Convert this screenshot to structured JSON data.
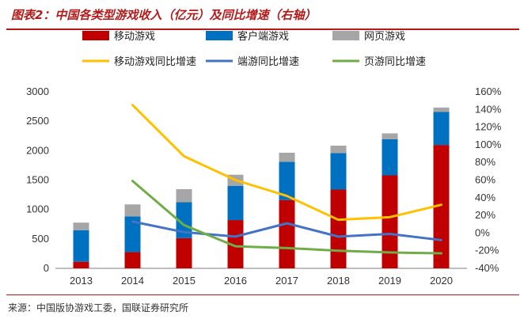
{
  "title": "图表2：中国各类型游戏收入（亿元）及同比增速（右轴）",
  "source": "来源：中国版协游戏工委，国联证券研究所",
  "colors": {
    "accent": "#b31b1b",
    "mobile": "#c00000",
    "client": "#0070c0",
    "web": "#a6a6a6",
    "mobile_growth": "#ffc000",
    "client_growth": "#4472c4",
    "web_growth": "#70ad47"
  },
  "chart_data": {
    "type": "bar",
    "stacked": true,
    "categories": [
      "2013",
      "2014",
      "2015",
      "2016",
      "2017",
      "2018",
      "2019",
      "2020"
    ],
    "ylim_left": [
      0,
      3000
    ],
    "yticks_left": [
      "0",
      "500",
      "1000",
      "1500",
      "2000",
      "2500",
      "3000"
    ],
    "ylim_right": [
      -40,
      160
    ],
    "yticks_right": [
      "-40%",
      "-20%",
      "0%",
      "20%",
      "40%",
      "60%",
      "80%",
      "100%",
      "120%",
      "140%",
      "160%"
    ],
    "legend_position": "top",
    "grid": false,
    "series": [
      {
        "name": "移动游戏",
        "kind": "bar",
        "axis": "left",
        "color": "#c00000",
        "values": [
          112,
          275,
          514,
          820,
          1161,
          1339,
          1581,
          2097
        ]
      },
      {
        "name": "客户端游戏",
        "kind": "bar",
        "axis": "left",
        "color": "#0070c0",
        "values": [
          537,
          608,
          612,
          583,
          648,
          619,
          615,
          560
        ]
      },
      {
        "name": "网页游戏",
        "kind": "bar",
        "axis": "left",
        "color": "#a6a6a6",
        "values": [
          128,
          203,
          220,
          188,
          156,
          127,
          98,
          76
        ]
      },
      {
        "name": "移动游戏同比增速",
        "kind": "line",
        "axis": "right",
        "color": "#ffc000",
        "values": [
          null,
          145,
          87,
          60,
          42,
          15,
          18,
          32
        ]
      },
      {
        "name": "端游同比增速",
        "kind": "line",
        "axis": "right",
        "color": "#4472c4",
        "values": [
          null,
          13,
          1,
          -4,
          11,
          -4,
          -1,
          -8
        ]
      },
      {
        "name": "页游同比增速",
        "kind": "line",
        "axis": "right",
        "color": "#70ad47",
        "values": [
          null,
          59,
          9,
          -15,
          -17,
          -20,
          -22,
          -23
        ]
      }
    ]
  }
}
